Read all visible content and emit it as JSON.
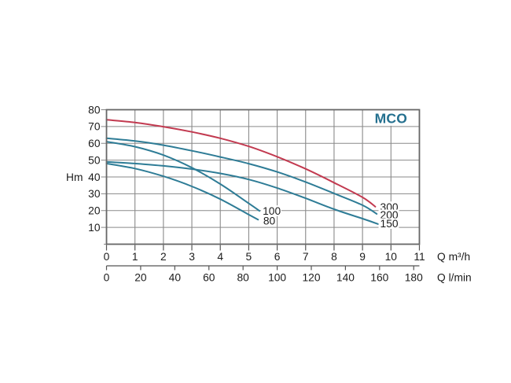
{
  "chart_data": {
    "type": "line",
    "title": "MCO",
    "title_color": "#24708f",
    "y_axis": {
      "label": "Hm",
      "range": [
        0,
        80
      ],
      "tick_labels": [
        80,
        70,
        60,
        50,
        40,
        30,
        20,
        10
      ],
      "grid": true
    },
    "x_axis_primary": {
      "label": "Q m³/h",
      "range": [
        0,
        11
      ],
      "tick_labels": [
        0,
        1,
        2,
        3,
        4,
        5,
        6,
        7,
        8,
        9,
        10,
        11
      ]
    },
    "x_axis_secondary": {
      "label": "Q l/min",
      "range": [
        0,
        183.33
      ],
      "tick_labels": [
        0,
        20,
        40,
        60,
        80,
        100,
        120,
        140,
        160,
        180
      ],
      "lmin_per_m3h": 16.6667
    },
    "series": [
      {
        "name": "300",
        "color": "#c23a50",
        "points": [
          [
            0,
            74
          ],
          [
            1,
            72.4
          ],
          [
            2,
            69.9
          ],
          [
            3,
            66.8
          ],
          [
            4,
            63
          ],
          [
            5,
            58.2
          ],
          [
            6,
            52
          ],
          [
            7,
            44.8
          ],
          [
            8,
            36.6
          ],
          [
            9,
            27.9
          ],
          [
            9.45,
            22.3
          ]
        ],
        "label_anchor": [
          9.62,
          22.2
        ]
      },
      {
        "name": "200",
        "color": "#2e7c96",
        "points": [
          [
            0,
            63
          ],
          [
            1,
            61.4
          ],
          [
            2,
            58.9
          ],
          [
            3,
            55.6
          ],
          [
            4,
            51.9
          ],
          [
            5,
            47.9
          ],
          [
            6,
            43
          ],
          [
            7,
            37
          ],
          [
            8,
            30.2
          ],
          [
            9,
            23.2
          ],
          [
            9.5,
            18
          ]
        ],
        "label_anchor": [
          9.62,
          17.4
        ]
      },
      {
        "name": "150",
        "color": "#2e7c96",
        "points": [
          [
            0,
            49
          ],
          [
            1,
            48
          ],
          [
            2,
            46.6
          ],
          [
            3,
            44.7
          ],
          [
            4,
            42.1
          ],
          [
            5,
            38.5
          ],
          [
            6,
            33.4
          ],
          [
            7,
            27.3
          ],
          [
            8,
            20.8
          ],
          [
            9,
            15.2
          ],
          [
            9.55,
            12
          ]
        ],
        "label_anchor": [
          9.62,
          12.3
        ]
      },
      {
        "name": "100",
        "color": "#2e7c96",
        "points": [
          [
            0,
            61
          ],
          [
            1,
            58
          ],
          [
            2,
            53
          ],
          [
            3,
            45.5
          ],
          [
            4,
            35.8
          ],
          [
            5,
            24.3
          ],
          [
            5.38,
            19.8
          ]
        ],
        "label_anchor": [
          5.49,
          19.9
        ]
      },
      {
        "name": "80",
        "color": "#2e7c96",
        "points": [
          [
            0,
            48
          ],
          [
            1,
            45
          ],
          [
            2,
            40.4
          ],
          [
            3,
            34.4
          ],
          [
            4,
            26.8
          ],
          [
            5,
            17.6
          ],
          [
            5.33,
            14.6
          ]
        ],
        "label_anchor": [
          5.51,
          14.0
        ]
      }
    ],
    "colors": {
      "grid": "#8a8a8a",
      "border": "#666666",
      "tick": "#555555",
      "text": "#1c1c1c"
    }
  }
}
